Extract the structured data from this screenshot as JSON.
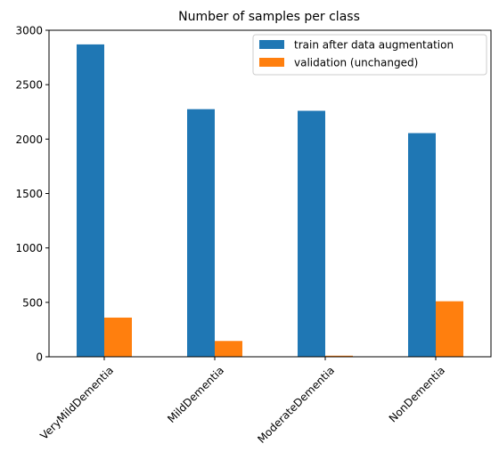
{
  "chart_data": {
    "type": "bar",
    "title": "Number of samples per class",
    "xlabel": "",
    "ylabel": "",
    "categories": [
      "VeryMildDementia",
      "MildDementia",
      "ModerateDementia",
      "NonDementia"
    ],
    "series": [
      {
        "name": "train after data augmentation",
        "color": "#1f77b4",
        "values": [
          2870,
          2275,
          2260,
          2055
        ]
      },
      {
        "name": "validation (unchanged)",
        "color": "#ff7f0e",
        "values": [
          360,
          145,
          10,
          510
        ]
      }
    ],
    "ylim": [
      0,
      3000
    ],
    "yticks": [
      0,
      500,
      1000,
      1500,
      2000,
      2500,
      3000
    ],
    "grid": false,
    "legend": "top-right",
    "xtick_rotation": 45
  }
}
